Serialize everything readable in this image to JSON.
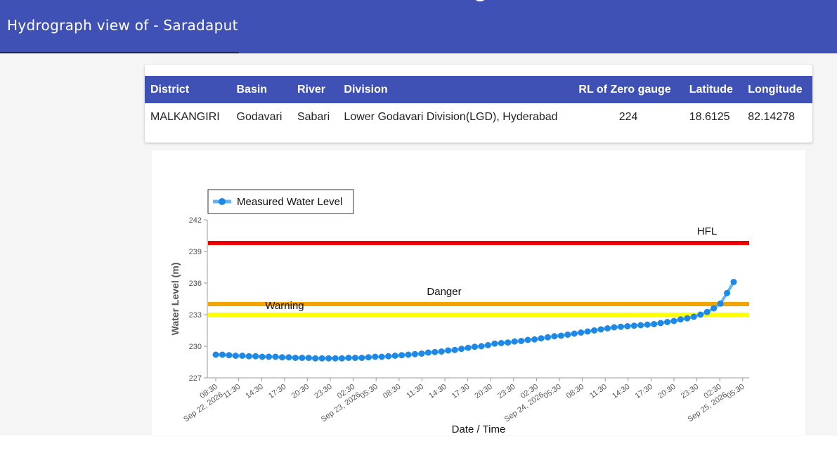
{
  "header": {
    "title": "Hydrograph view of - Saradaput",
    "bg_color": "#3f51b5"
  },
  "info_table": {
    "columns": [
      "District",
      "Basin",
      "River",
      "Division",
      "RL of Zero gauge",
      "Latitude",
      "Longitude"
    ],
    "row": [
      "MALKANGIRI",
      "Godavari",
      "Sabari",
      "Lower Godavari Division(LGD), Hyderabad",
      "224",
      "18.6125",
      "82.14278"
    ]
  },
  "chart_data": {
    "type": "line",
    "xlabel": "Date / Time",
    "ylabel": "Water Level (m)",
    "ylim": [
      227,
      242
    ],
    "yticks": [
      227,
      230,
      233,
      236,
      239,
      242
    ],
    "legend": {
      "position": "top-left",
      "label": "Measured Water Level"
    },
    "x_tick_labels": [
      [
        "08:30",
        "Sep 22, 2026"
      ],
      [
        "11:30"
      ],
      [
        "14:30"
      ],
      [
        "17:30"
      ],
      [
        "20:30"
      ],
      [
        "23:30"
      ],
      [
        "02:30",
        "Sep 23, 2026"
      ],
      [
        "05:30"
      ],
      [
        "08:30"
      ],
      [
        "11:30"
      ],
      [
        "14:30"
      ],
      [
        "17:30"
      ],
      [
        "20:30"
      ],
      [
        "23:30"
      ],
      [
        "02:30",
        "Sep 24, 2026"
      ],
      [
        "05:30"
      ],
      [
        "08:30"
      ],
      [
        "11:30"
      ],
      [
        "14:30"
      ],
      [
        "17:30"
      ],
      [
        "20:30"
      ],
      [
        "23:30"
      ],
      [
        "02:30",
        "Sep 25, 2026"
      ],
      [
        "05:30"
      ]
    ],
    "thresholds": [
      {
        "name": "HFL",
        "value": 239.8,
        "color": "#ee0000"
      },
      {
        "name": "Danger",
        "value": 234.0,
        "color": "#f5a300"
      },
      {
        "name": "Warning",
        "value": 233.0,
        "color": "#ffff00"
      }
    ],
    "series": [
      {
        "name": "Measured Water Level",
        "color": "#1e88e5",
        "values": [
          229.2,
          229.2,
          229.15,
          229.1,
          229.1,
          229.05,
          229.05,
          229.0,
          229.0,
          229.0,
          228.95,
          228.95,
          228.9,
          228.9,
          228.9,
          228.85,
          228.85,
          228.85,
          228.85,
          228.85,
          228.9,
          228.9,
          228.9,
          228.95,
          229.0,
          229.0,
          229.05,
          229.1,
          229.15,
          229.2,
          229.25,
          229.3,
          229.4,
          229.45,
          229.5,
          229.6,
          229.65,
          229.75,
          229.85,
          229.95,
          230.0,
          230.1,
          230.25,
          230.3,
          230.35,
          230.45,
          230.5,
          230.6,
          230.65,
          230.75,
          230.85,
          230.95,
          231.0,
          231.1,
          231.2,
          231.3,
          231.4,
          231.5,
          231.6,
          231.7,
          231.8,
          231.85,
          231.9,
          231.95,
          232.0,
          232.05,
          232.1,
          232.2,
          232.3,
          232.4,
          232.55,
          232.65,
          232.8,
          233.0,
          233.25,
          233.6,
          234.05,
          235.05,
          236.1
        ]
      }
    ]
  }
}
